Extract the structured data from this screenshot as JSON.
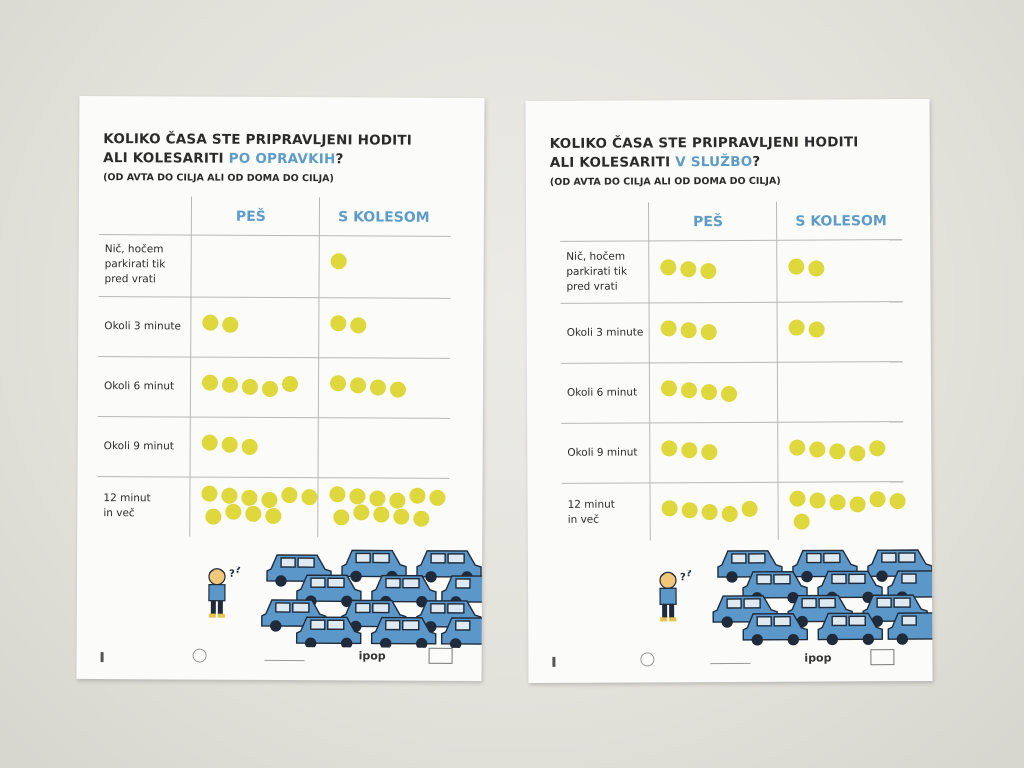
{
  "posters": [
    {
      "title_line1": "KOLIKO ČASA STE PRIPRAVLJENI HODITI",
      "title_line2_prefix": "ALI KOLESARITI",
      "title_highlight": "PO OPRAVKIH",
      "title_suffix": "?",
      "subtitle": "(OD AVTA DO CILJA ALI OD DOMA DO CILJA)",
      "col_walk": "PEŠ",
      "col_bike": "S KOLESOM",
      "rows": [
        {
          "label": [
            "Nič, hočem",
            "parkirati tik",
            "pred vrati"
          ],
          "walk": 0,
          "bike": 1
        },
        {
          "label": [
            "Okoli 3 minute"
          ],
          "walk": 2,
          "bike": 2
        },
        {
          "label": [
            "Okoli 6 minut"
          ],
          "walk": 5,
          "bike": 4
        },
        {
          "label": [
            "Okoli 9 minut"
          ],
          "walk": 3,
          "bike": 0
        },
        {
          "label": [
            "12 minut",
            "in več"
          ],
          "walk": 10,
          "bike": 11
        }
      ],
      "logo_ipop": "ipop"
    },
    {
      "title_line1": "KOLIKO ČASA STE PRIPRAVLJENI HODITI",
      "title_line2_prefix": "ALI KOLESARITI",
      "title_highlight": "V SLUŽBO",
      "title_suffix": "?",
      "subtitle": "(OD AVTA DO CILJA ALI OD DOMA DO CILJA)",
      "col_walk": "PEŠ",
      "col_bike": "S KOLESOM",
      "rows": [
        {
          "label": [
            "Nič, hočem",
            "parkirati tik",
            "pred vrati"
          ],
          "walk": 3,
          "bike": 2
        },
        {
          "label": [
            "Okoli 3 minute"
          ],
          "walk": 3,
          "bike": 2
        },
        {
          "label": [
            "Okoli 6 minut"
          ],
          "walk": 4,
          "bike": 0
        },
        {
          "label": [
            "Okoli 9 minut"
          ],
          "walk": 3,
          "bike": 5
        },
        {
          "label": [
            "12 minut",
            "in več"
          ],
          "walk": 5,
          "bike": 7
        }
      ],
      "logo_ipop": "ipop"
    }
  ],
  "colors": {
    "dot": "#ded83c",
    "accent": "#5d9cc9",
    "car": "#5b97c9",
    "text": "#2b2b2b"
  },
  "illustration": {
    "kid_label": "?",
    "kid_label2": "?"
  }
}
